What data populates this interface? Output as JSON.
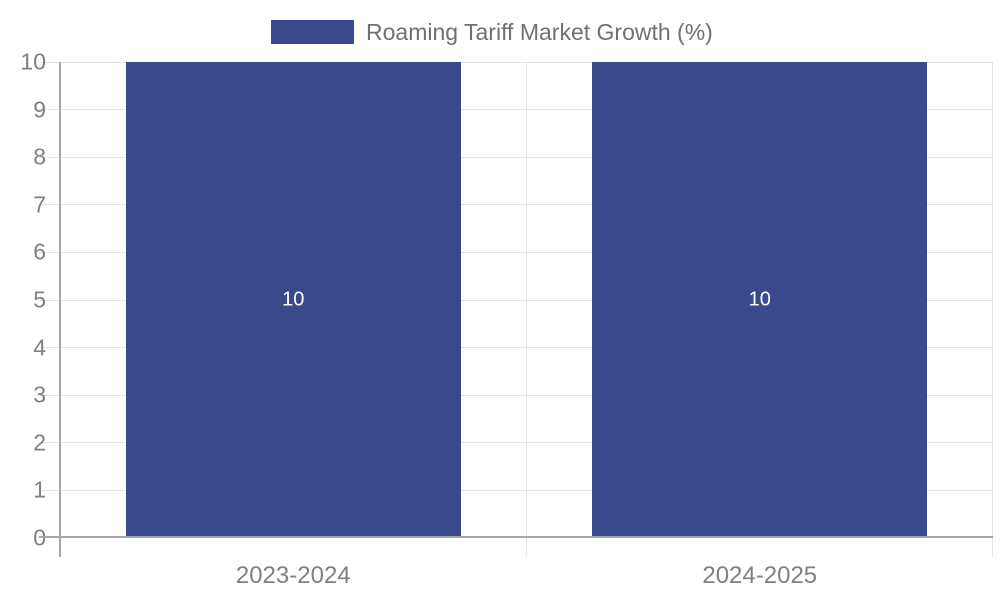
{
  "legend": {
    "label": "Roaming Tariff Market Growth (%)"
  },
  "chart_data": {
    "type": "bar",
    "title": "Roaming Tariff Market Growth (%)",
    "categories": [
      "2023-2024",
      "2024-2025"
    ],
    "values": [
      10,
      10
    ],
    "value_labels": [
      "10",
      "10"
    ],
    "ylim": [
      0,
      10
    ],
    "ytick_step": 1,
    "ytick_labels": [
      "0",
      "1",
      "2",
      "3",
      "4",
      "5",
      "6",
      "7",
      "8",
      "9",
      "10"
    ],
    "grid": true,
    "legend_position": "top-center",
    "colors": {
      "bar": "#384A8C",
      "grid": "#e4e4e4",
      "axis": "#a6a6a6",
      "tick_label": "#808080",
      "legend_text": "#707070",
      "value_label": "#ffffff",
      "background": "#ffffff"
    }
  }
}
